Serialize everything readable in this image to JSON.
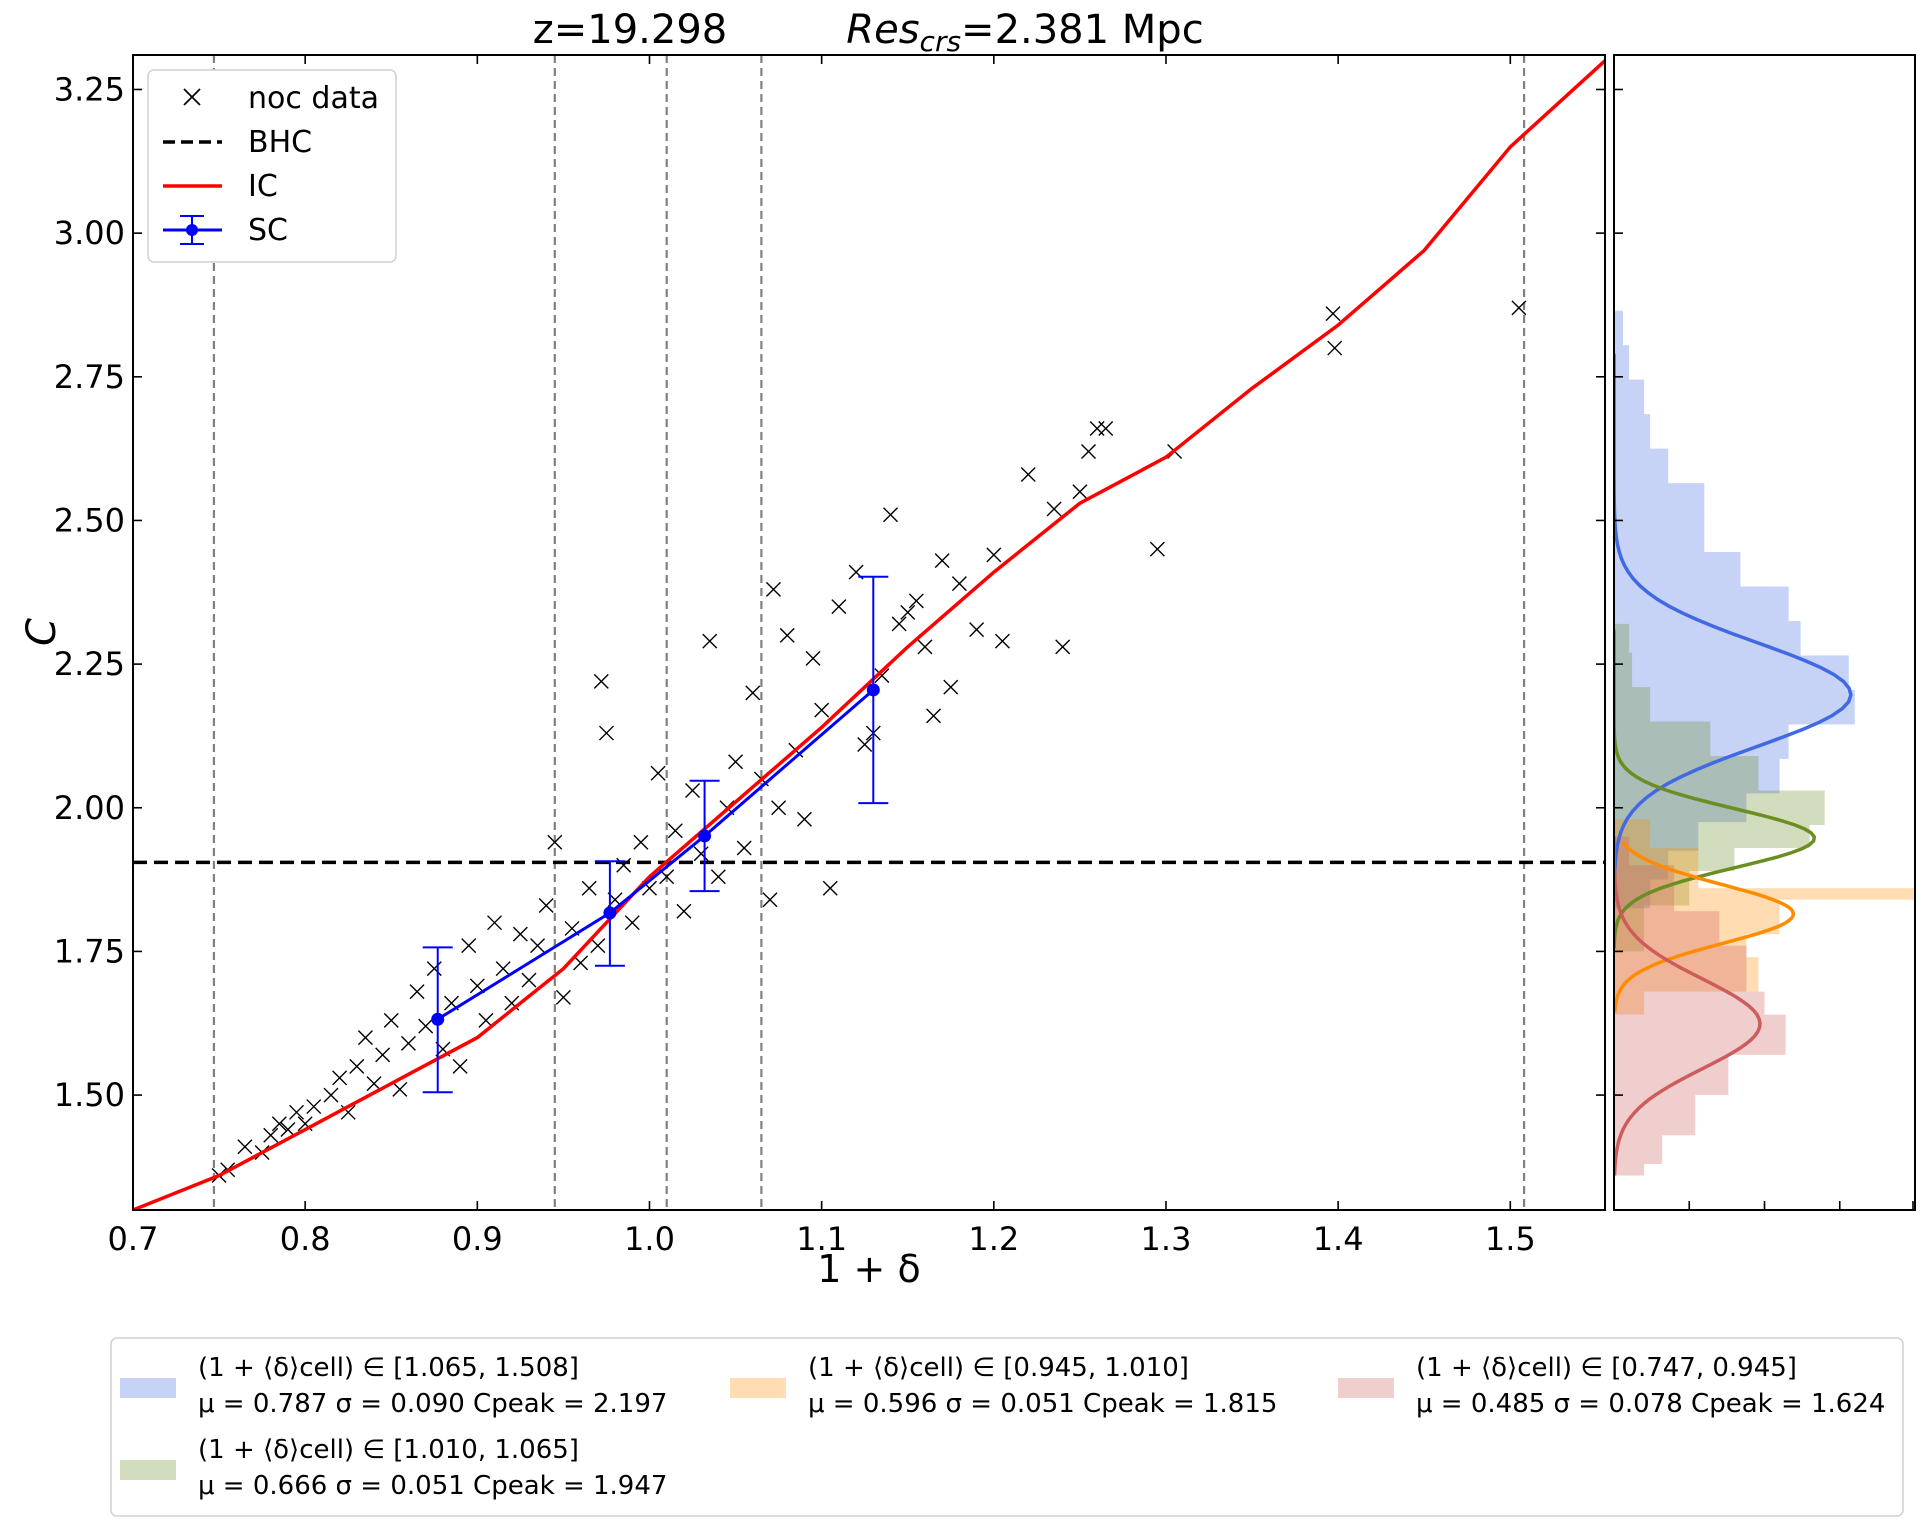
{
  "chart_data": [
    {
      "type": "scatter",
      "title_left": "z=19.298",
      "title_right": {
        "main": "Res",
        "sub": "crs",
        "rest": "=2.381 Mpc"
      },
      "xlabel": "1 + δ",
      "ylabel": "C",
      "xlim": [
        0.7,
        1.555
      ],
      "ylim": [
        1.3,
        3.31
      ],
      "xticks": [
        0.7,
        0.8,
        0.9,
        1.0,
        1.1,
        1.2,
        1.3,
        1.4,
        1.5
      ],
      "xtick_labels": [
        "0.7",
        "0.8",
        "0.9",
        "1.0",
        "1.1",
        "1.2",
        "1.3",
        "1.4",
        "1.5"
      ],
      "yticks": [
        1.5,
        1.75,
        2.0,
        2.25,
        2.5,
        2.75,
        3.0,
        3.25
      ],
      "ytick_labels": [
        "1.50",
        "1.75",
        "2.00",
        "2.25",
        "2.50",
        "2.75",
        "3.00",
        "3.25"
      ],
      "grid": false,
      "legend_position": "top-left",
      "legend": [
        {
          "label": "noc data",
          "kind": "marker-x",
          "color": "#000000"
        },
        {
          "label": "BHC",
          "kind": "dashed-line",
          "color": "#000000"
        },
        {
          "label": "IC",
          "kind": "line",
          "color": "#ff0000"
        },
        {
          "label": "SC",
          "kind": "errorbar",
          "color": "#0000ff"
        }
      ],
      "bin_edges_vlines": [
        0.747,
        0.945,
        1.01,
        1.065,
        1.508
      ],
      "bhc_level": 1.905,
      "ic_curve": {
        "x": [
          0.7,
          0.75,
          0.8,
          0.85,
          0.9,
          0.95,
          1.0,
          1.05,
          1.1,
          1.15,
          1.2,
          1.25,
          1.3,
          1.35,
          1.4,
          1.45,
          1.5,
          1.555
        ],
        "y": [
          1.3,
          1.36,
          1.44,
          1.52,
          1.6,
          1.72,
          1.88,
          2.01,
          2.14,
          2.28,
          2.41,
          2.53,
          2.61,
          2.73,
          2.84,
          2.97,
          3.15,
          3.3
        ]
      },
      "sc_points": [
        {
          "x": 0.877,
          "y": 1.632,
          "yerr_low": 1.505,
          "yerr_high": 1.757
        },
        {
          "x": 0.977,
          "y": 1.817,
          "yerr_low": 1.725,
          "yerr_high": 1.907
        },
        {
          "x": 1.032,
          "y": 1.951,
          "yerr_low": 1.855,
          "yerr_high": 2.047
        },
        {
          "x": 1.13,
          "y": 2.205,
          "yerr_low": 2.008,
          "yerr_high": 2.402
        }
      ],
      "noc_points": [
        [
          0.75,
          1.36
        ],
        [
          0.755,
          1.37
        ],
        [
          0.765,
          1.41
        ],
        [
          0.775,
          1.4
        ],
        [
          0.78,
          1.43
        ],
        [
          0.785,
          1.45
        ],
        [
          0.79,
          1.44
        ],
        [
          0.795,
          1.47
        ],
        [
          0.8,
          1.45
        ],
        [
          0.805,
          1.48
        ],
        [
          0.815,
          1.5
        ],
        [
          0.82,
          1.53
        ],
        [
          0.825,
          1.47
        ],
        [
          0.83,
          1.55
        ],
        [
          0.835,
          1.6
        ],
        [
          0.84,
          1.52
        ],
        [
          0.845,
          1.57
        ],
        [
          0.85,
          1.63
        ],
        [
          0.855,
          1.51
        ],
        [
          0.86,
          1.59
        ],
        [
          0.865,
          1.68
        ],
        [
          0.87,
          1.62
        ],
        [
          0.875,
          1.72
        ],
        [
          0.88,
          1.58
        ],
        [
          0.885,
          1.66
        ],
        [
          0.89,
          1.55
        ],
        [
          0.895,
          1.76
        ],
        [
          0.9,
          1.69
        ],
        [
          0.905,
          1.63
        ],
        [
          0.91,
          1.8
        ],
        [
          0.915,
          1.72
        ],
        [
          0.92,
          1.66
        ],
        [
          0.925,
          1.78
        ],
        [
          0.93,
          1.7
        ],
        [
          0.935,
          1.76
        ],
        [
          0.94,
          1.83
        ],
        [
          0.945,
          1.94
        ],
        [
          0.95,
          1.67
        ],
        [
          0.955,
          1.79
        ],
        [
          0.96,
          1.73
        ],
        [
          0.965,
          1.86
        ],
        [
          0.97,
          1.76
        ],
        [
          0.972,
          2.22
        ],
        [
          0.975,
          2.13
        ],
        [
          0.98,
          1.84
        ],
        [
          0.985,
          1.9
        ],
        [
          0.99,
          1.8
        ],
        [
          0.995,
          1.94
        ],
        [
          1.0,
          1.86
        ],
        [
          1.005,
          2.06
        ],
        [
          1.01,
          1.88
        ],
        [
          1.015,
          1.96
        ],
        [
          1.02,
          1.82
        ],
        [
          1.025,
          2.03
        ],
        [
          1.03,
          1.92
        ],
        [
          1.035,
          2.29
        ],
        [
          1.04,
          1.88
        ],
        [
          1.045,
          2.0
        ],
        [
          1.05,
          2.08
        ],
        [
          1.055,
          1.93
        ],
        [
          1.06,
          2.2
        ],
        [
          1.065,
          2.05
        ],
        [
          1.07,
          1.84
        ],
        [
          1.072,
          2.38
        ],
        [
          1.075,
          2.0
        ],
        [
          1.08,
          2.3
        ],
        [
          1.085,
          2.1
        ],
        [
          1.09,
          1.98
        ],
        [
          1.095,
          2.26
        ],
        [
          1.1,
          2.17
        ],
        [
          1.105,
          1.86
        ],
        [
          1.11,
          2.35
        ],
        [
          1.12,
          2.41
        ],
        [
          1.125,
          2.11
        ],
        [
          1.13,
          2.13
        ],
        [
          1.135,
          2.23
        ],
        [
          1.14,
          2.51
        ],
        [
          1.145,
          2.32
        ],
        [
          1.15,
          2.34
        ],
        [
          1.155,
          2.36
        ],
        [
          1.16,
          2.28
        ],
        [
          1.165,
          2.16
        ],
        [
          1.17,
          2.43
        ],
        [
          1.175,
          2.21
        ],
        [
          1.18,
          2.39
        ],
        [
          1.19,
          2.31
        ],
        [
          1.2,
          2.44
        ],
        [
          1.205,
          2.29
        ],
        [
          1.22,
          2.58
        ],
        [
          1.235,
          2.52
        ],
        [
          1.24,
          2.28
        ],
        [
          1.25,
          2.55
        ],
        [
          1.255,
          2.62
        ],
        [
          1.26,
          2.66
        ],
        [
          1.265,
          2.66
        ],
        [
          1.295,
          2.45
        ],
        [
          1.305,
          2.62
        ],
        [
          1.397,
          2.86
        ],
        [
          1.398,
          2.8
        ],
        [
          1.505,
          2.87
        ]
      ]
    },
    {
      "type": "area",
      "orientation": "horizontal",
      "ylim": [
        1.3,
        3.31
      ],
      "series": [
        {
          "label": "(1 + ⟨δ⟩cell) ∈ [1.065, 1.508]",
          "stats": "μ = 0.787   σ = 0.090   Cpeak = 2.197",
          "mu": 0.787,
          "sigma": 0.09,
          "peak": 2.197,
          "color": "#4169e1",
          "hist_edges": [
            1.825,
            1.875,
            1.925,
            1.975,
            2.025,
            2.085,
            2.145,
            2.205,
            2.265,
            2.325,
            2.385,
            2.445,
            2.505,
            2.565,
            2.625,
            2.685,
            2.745,
            2.805,
            2.865
          ],
          "hist_counts": [
            0.12,
            0.18,
            0.28,
            0.44,
            0.55,
            0.58,
            0.8,
            0.78,
            0.62,
            0.58,
            0.42,
            0.3,
            0.3,
            0.18,
            0.12,
            0.1,
            0.05,
            0.03
          ],
          "curve_range": [
            1.84,
            2.79
          ]
        },
        {
          "label": "(1 + ⟨δ⟩cell) ∈ [1.010, 1.065]",
          "stats": "μ = 0.666   σ = 0.051   Cpeak = 1.947",
          "mu": 0.666,
          "sigma": 0.051,
          "peak": 1.947,
          "color": "#6b8e23",
          "hist_edges": [
            1.75,
            1.83,
            1.89,
            1.93,
            1.97,
            2.03,
            2.09,
            2.15,
            2.21,
            2.27,
            2.32
          ],
          "hist_counts": [
            0.1,
            0.25,
            0.4,
            0.65,
            0.7,
            0.48,
            0.32,
            0.12,
            0.06,
            0.05
          ],
          "curve_range": [
            1.755,
            2.31
          ]
        },
        {
          "label": "(1 + ⟨δ⟩cell) ∈ [0.945, 1.010]",
          "stats": "μ = 0.596   σ = 0.051   Cpeak = 1.815",
          "mu": 0.596,
          "sigma": 0.051,
          "peak": 1.815,
          "color": "#ff8c00",
          "hist_edges": [
            1.64,
            1.68,
            1.74,
            1.78,
            1.84,
            1.86,
            1.93,
            1.98
          ],
          "hist_counts": [
            0.1,
            0.48,
            0.44,
            0.55,
            1.0,
            0.28,
            0.12
          ],
          "curve_range": [
            1.645,
            1.94
          ]
        },
        {
          "label": "(1 + ⟨δ⟩cell) ∈ [0.747, 0.945]",
          "stats": "μ = 0.485   σ = 0.078   Cpeak = 1.624",
          "mu": 0.485,
          "sigma": 0.078,
          "peak": 1.624,
          "color": "#cd5c5c",
          "hist_edges": [
            1.36,
            1.38,
            1.43,
            1.5,
            1.57,
            1.64,
            1.68,
            1.76,
            1.82,
            1.9,
            1.95
          ],
          "hist_counts": [
            0.1,
            0.16,
            0.27,
            0.38,
            0.57,
            0.5,
            0.44,
            0.35,
            0.2,
            0.05
          ],
          "curve_range": [
            1.36,
            1.95
          ]
        }
      ]
    }
  ]
}
